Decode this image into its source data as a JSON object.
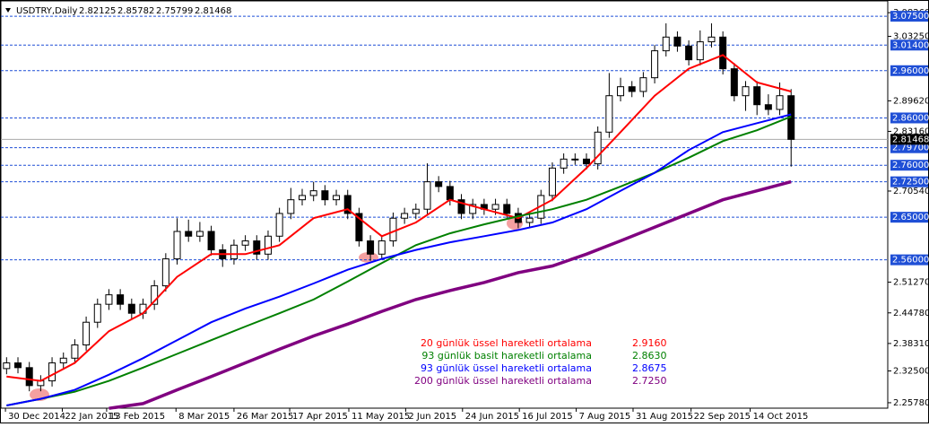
{
  "chart_data": {
    "type": "candlestick",
    "title": "USDTRY,Daily",
    "header_values": [
      2.82125,
      2.85782,
      2.75799,
      2.81468
    ],
    "xlim": [
      -0.5,
      77.5
    ],
    "ylim": [
      2.2463,
      3.1075
    ],
    "xticks": [
      {
        "value": -0.1,
        "label": "30 Dec 2014"
      },
      {
        "value": 4.9,
        "label": "22 Jan 2015"
      },
      {
        "value": 8.8,
        "label": "13 Feb 2015"
      },
      {
        "value": 14.9,
        "label": "8 Mar 2015"
      },
      {
        "value": 20,
        "label": "26 Mar 2015"
      },
      {
        "value": 24.9,
        "label": "17 Apr 2015"
      },
      {
        "value": 30.1,
        "label": "11 May 2015"
      },
      {
        "value": 35.1,
        "label": "2 Jun 2015"
      },
      {
        "value": 40.1,
        "label": "24 Jun 2015"
      },
      {
        "value": 45.1,
        "label": "16 Jul 2015"
      },
      {
        "value": 50.1,
        "label": "7 Aug 2015"
      },
      {
        "value": 55.1,
        "label": "31 Aug 2015"
      },
      {
        "value": 60.2,
        "label": "22 Sep 2015"
      },
      {
        "value": 65.4,
        "label": "14 Oct 2015"
      }
    ],
    "yticks": [
      {
        "value": 3.0826,
        "label": "3.08260"
      },
      {
        "value": 3.0325,
        "label": "3.03250"
      },
      {
        "value": 2.8962,
        "label": "2.89620"
      },
      {
        "value": 2.8316,
        "label": "2.83160"
      },
      {
        "value": 2.7054,
        "label": "2.70540"
      },
      {
        "value": 2.5127,
        "label": "2.51270"
      },
      {
        "value": 2.4478,
        "label": "2.44780"
      },
      {
        "value": 2.3831,
        "label": "2.38310"
      },
      {
        "value": 2.325,
        "label": "2.32500"
      },
      {
        "value": 2.2578,
        "label": "2.25780"
      }
    ],
    "levels": [
      {
        "value": 3.075,
        "label": "3.07500"
      },
      {
        "value": 3.014,
        "label": "3.01400"
      },
      {
        "value": 2.96,
        "label": "2.96000"
      },
      {
        "value": 2.86,
        "label": "2.86000"
      },
      {
        "value": 2.797,
        "label": "2.79700"
      },
      {
        "value": 2.76,
        "label": "2.76000"
      },
      {
        "value": 2.725,
        "label": "2.72500"
      },
      {
        "value": 2.65,
        "label": "2.65000"
      },
      {
        "value": 2.56,
        "label": "2.56000"
      }
    ],
    "level_color": "#1f4fd6",
    "current_price": 2.81468,
    "candles": {
      "open": [
        2.33,
        2.342,
        2.332,
        2.294,
        2.304,
        2.342,
        2.352,
        2.38,
        2.428,
        2.466,
        2.486,
        2.466,
        2.447,
        2.466,
        2.505,
        2.562,
        2.62,
        2.61,
        2.62,
        2.581,
        2.562,
        2.591,
        2.6,
        2.572,
        2.61,
        2.658,
        2.687,
        2.696,
        2.706,
        2.687,
        2.696,
        2.658,
        2.6,
        2.572,
        2.6,
        2.648,
        2.658,
        2.667,
        2.725,
        2.715,
        2.687,
        2.658,
        2.677,
        2.667,
        2.677,
        2.658,
        2.639,
        2.648,
        2.696,
        2.754,
        2.773,
        2.773,
        2.763,
        2.83,
        2.907,
        2.926,
        2.916,
        2.945,
        3.002,
        3.031,
        3.012,
        2.983,
        3.021,
        3.031,
        2.964,
        2.907,
        2.926,
        2.888,
        2.878,
        2.907
      ],
      "high": [
        2.354,
        2.354,
        2.344,
        2.316,
        2.354,
        2.364,
        2.392,
        2.44,
        2.478,
        2.498,
        2.498,
        2.478,
        2.478,
        2.517,
        2.574,
        2.648,
        2.645,
        2.64,
        2.632,
        2.593,
        2.603,
        2.612,
        2.612,
        2.622,
        2.67,
        2.712,
        2.71,
        2.725,
        2.718,
        2.708,
        2.708,
        2.67,
        2.612,
        2.612,
        2.66,
        2.67,
        2.679,
        2.764,
        2.737,
        2.727,
        2.699,
        2.689,
        2.689,
        2.689,
        2.689,
        2.67,
        2.66,
        2.708,
        2.766,
        2.785,
        2.785,
        2.785,
        2.842,
        2.955,
        2.945,
        2.938,
        2.957,
        3.014,
        3.06,
        3.043,
        3.024,
        3.045,
        3.06,
        3.043,
        2.976,
        2.938,
        2.938,
        2.91,
        2.935,
        2.921
      ],
      "low": [
        2.318,
        2.32,
        2.282,
        2.282,
        2.292,
        2.33,
        2.34,
        2.368,
        2.416,
        2.454,
        2.454,
        2.435,
        2.435,
        2.454,
        2.493,
        2.55,
        2.598,
        2.598,
        2.569,
        2.545,
        2.55,
        2.579,
        2.56,
        2.56,
        2.598,
        2.646,
        2.675,
        2.684,
        2.675,
        2.675,
        2.646,
        2.588,
        2.558,
        2.56,
        2.588,
        2.636,
        2.646,
        2.655,
        2.703,
        2.675,
        2.646,
        2.646,
        2.655,
        2.655,
        2.646,
        2.627,
        2.627,
        2.636,
        2.684,
        2.742,
        2.761,
        2.751,
        2.751,
        2.818,
        2.895,
        2.904,
        2.904,
        2.933,
        2.99,
        3.0,
        2.971,
        2.971,
        3.009,
        2.952,
        2.895,
        2.875,
        2.866,
        2.866,
        2.866,
        2.757
      ],
      "close": [
        2.342,
        2.332,
        2.294,
        2.304,
        2.342,
        2.352,
        2.38,
        2.428,
        2.466,
        2.486,
        2.466,
        2.447,
        2.466,
        2.505,
        2.562,
        2.62,
        2.61,
        2.62,
        2.581,
        2.562,
        2.591,
        2.6,
        2.572,
        2.61,
        2.658,
        2.687,
        2.696,
        2.706,
        2.687,
        2.696,
        2.658,
        2.6,
        2.572,
        2.6,
        2.648,
        2.658,
        2.667,
        2.725,
        2.715,
        2.687,
        2.658,
        2.677,
        2.667,
        2.677,
        2.658,
        2.639,
        2.648,
        2.696,
        2.754,
        2.773,
        2.773,
        2.763,
        2.83,
        2.907,
        2.926,
        2.916,
        2.945,
        3.002,
        3.031,
        3.012,
        2.983,
        3.021,
        3.031,
        2.964,
        2.907,
        2.926,
        2.888,
        2.878,
        2.907,
        2.81468
      ]
    },
    "series": [
      {
        "name": "20 günlük üssel hareketli ortalama",
        "color": "#ff0000",
        "width": 2,
        "value_label": "2.9160",
        "x": [
          0,
          3,
          6,
          9,
          12,
          15,
          18,
          21,
          24,
          27,
          30,
          33,
          36,
          39,
          42,
          45,
          48,
          51,
          54,
          57,
          60,
          63,
          66,
          69
        ],
        "values": [
          2.313,
          2.304,
          2.342,
          2.409,
          2.447,
          2.524,
          2.572,
          2.572,
          2.591,
          2.648,
          2.667,
          2.61,
          2.639,
          2.687,
          2.667,
          2.648,
          2.687,
          2.754,
          2.83,
          2.907,
          2.964,
          2.993,
          2.935,
          2.916
        ]
      },
      {
        "name": "93 günlük basit hareketli ortalama",
        "color": "#008000",
        "width": 2,
        "value_label": "2.8630",
        "x": [
          0,
          3,
          6,
          9,
          12,
          15,
          18,
          21,
          24,
          27,
          30,
          33,
          36,
          39,
          42,
          45,
          48,
          51,
          54,
          57,
          60,
          63,
          66,
          69
        ],
        "values": [
          2.252,
          2.266,
          2.281,
          2.304,
          2.332,
          2.361,
          2.39,
          2.419,
          2.447,
          2.476,
          2.514,
          2.553,
          2.591,
          2.616,
          2.635,
          2.652,
          2.667,
          2.687,
          2.715,
          2.744,
          2.776,
          2.811,
          2.834,
          2.863
        ]
      },
      {
        "name": "93 günlük üssel hareketli ortalama",
        "color": "#0000ff",
        "width": 2,
        "value_label": "2.8675",
        "x": [
          0,
          3,
          6,
          9,
          12,
          15,
          18,
          21,
          24,
          27,
          30,
          33,
          36,
          39,
          42,
          45,
          48,
          51,
          54,
          57,
          60,
          63,
          66,
          69
        ],
        "values": [
          2.252,
          2.266,
          2.285,
          2.317,
          2.352,
          2.39,
          2.428,
          2.457,
          2.482,
          2.51,
          2.539,
          2.562,
          2.581,
          2.597,
          2.61,
          2.623,
          2.639,
          2.667,
          2.706,
          2.744,
          2.792,
          2.83,
          2.849,
          2.8675
        ]
      },
      {
        "name": "200 günlük üssel hareketli ortalama",
        "color": "#800080",
        "width": 3.5,
        "value_label": "2.7250",
        "x": [
          9,
          12,
          15,
          18,
          21,
          24,
          27,
          30,
          33,
          36,
          39,
          42,
          45,
          48,
          51,
          54,
          57,
          60,
          63,
          66,
          69
        ],
        "values": [
          2.246,
          2.256,
          2.285,
          2.313,
          2.342,
          2.371,
          2.399,
          2.424,
          2.451,
          2.476,
          2.495,
          2.512,
          2.533,
          2.547,
          2.572,
          2.6,
          2.629,
          2.658,
          2.687,
          2.706,
          2.725
        ]
      }
    ]
  }
}
